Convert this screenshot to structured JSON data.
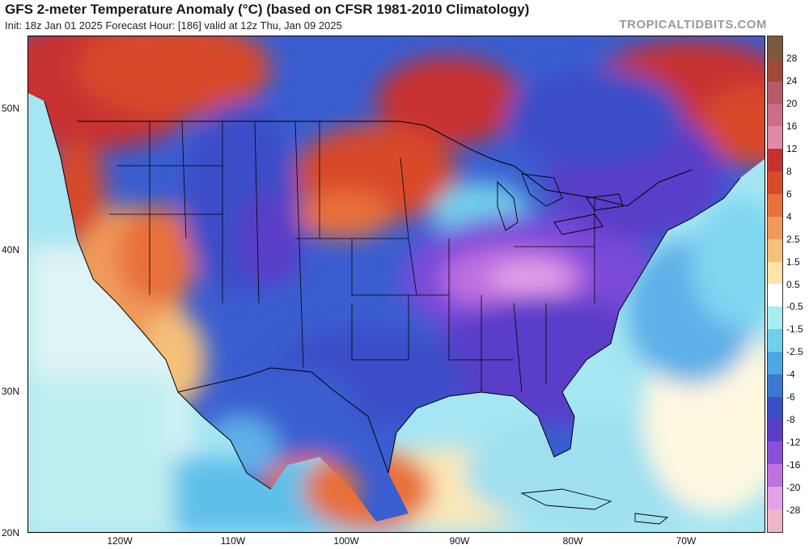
{
  "header": {
    "title": "GFS 2-meter Temperature Anomaly (°C) (based on CFSR 1981-2010 Climatology)",
    "subtitle": "Init: 18z Jan 01 2025   Forecast Hour: [186]   valid at 12z Thu, Jan 09 2025",
    "brand": "TROPICALTIDBITS.COM"
  },
  "axes": {
    "lat_labels": [
      "50N",
      "40N",
      "30N",
      "20N"
    ],
    "lon_labels": [
      "120W",
      "110W",
      "100W",
      "90W",
      "80W",
      "70W"
    ]
  },
  "colorbar": {
    "labels": [
      "28",
      "24",
      "20",
      "16",
      "12",
      "8",
      "6",
      "4",
      "2.5",
      "1.5",
      "0.5",
      "-0.5",
      "-1.5",
      "-2.5",
      "-4",
      "-6",
      "-8",
      "-12",
      "-16",
      "-20",
      "-28"
    ],
    "colors": [
      "#7a5a3a",
      "#a04a3a",
      "#b85a6a",
      "#cc6e8a",
      "#e08aa8",
      "#c83030",
      "#d84a2a",
      "#e8703a",
      "#f09a5a",
      "#f4c07a",
      "#fbe4a8",
      "#ffffff",
      "#a8eef0",
      "#70d0ec",
      "#4aa8e4",
      "#3a78d2",
      "#3a4ec8",
      "#5a3ec8",
      "#8a4ed8",
      "#c070e0",
      "#e6a0e8",
      "#f0b4c8"
    ]
  },
  "map": {
    "colors": {
      "ocean_cool": "#7fd6f0",
      "ocean_warm": "#fbe4a8",
      "land_cold": "#3a5ed0",
      "land_very_cold": "#7a4ad8",
      "land_extreme_cold": "#d090e8",
      "land_warm": "#e8703a",
      "land_hot": "#c03030",
      "border": "#000000"
    }
  }
}
